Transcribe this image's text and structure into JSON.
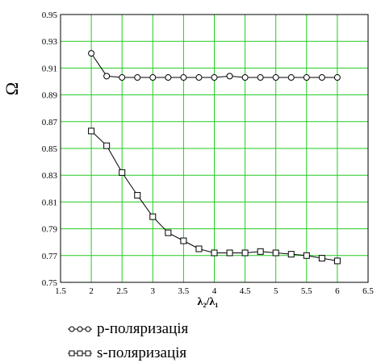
{
  "chart_data": {
    "type": "line",
    "ylabel": "Ω",
    "xlabel": "λ₂/λ₁",
    "xlim": [
      1.5,
      6.5
    ],
    "ylim": [
      0.75,
      0.95
    ],
    "x_ticks": [
      "1.5",
      "2",
      "2.5",
      "3",
      "3.5",
      "4",
      "4.5",
      "5",
      "5.5",
      "6",
      "6.5"
    ],
    "y_ticks": [
      "0.75",
      "0.77",
      "0.79",
      "0.81",
      "0.83",
      "0.85",
      "0.87",
      "0.89",
      "0.91",
      "0.93",
      "0.95"
    ],
    "grid": true,
    "grid_color": "#22cc22",
    "legend_position": "below",
    "series": [
      {
        "name": "p-поляризація",
        "marker": "circle",
        "x": [
          2,
          2.25,
          2.5,
          2.75,
          3,
          3.25,
          3.5,
          3.75,
          4,
          4.25,
          4.5,
          4.75,
          5,
          5.25,
          5.5,
          5.75,
          6
        ],
        "y": [
          0.921,
          0.904,
          0.903,
          0.903,
          0.903,
          0.903,
          0.903,
          0.903,
          0.903,
          0.904,
          0.903,
          0.903,
          0.903,
          0.903,
          0.903,
          0.903,
          0.903
        ]
      },
      {
        "name": "s-поляризація",
        "marker": "square",
        "x": [
          2,
          2.25,
          2.5,
          2.75,
          3,
          3.25,
          3.5,
          3.75,
          4,
          4.25,
          4.5,
          4.75,
          5,
          5.25,
          5.5,
          5.75,
          6
        ],
        "y": [
          0.863,
          0.852,
          0.832,
          0.815,
          0.799,
          0.787,
          0.781,
          0.775,
          0.772,
          0.772,
          0.772,
          0.773,
          0.772,
          0.771,
          0.77,
          0.768,
          0.766
        ]
      }
    ]
  }
}
